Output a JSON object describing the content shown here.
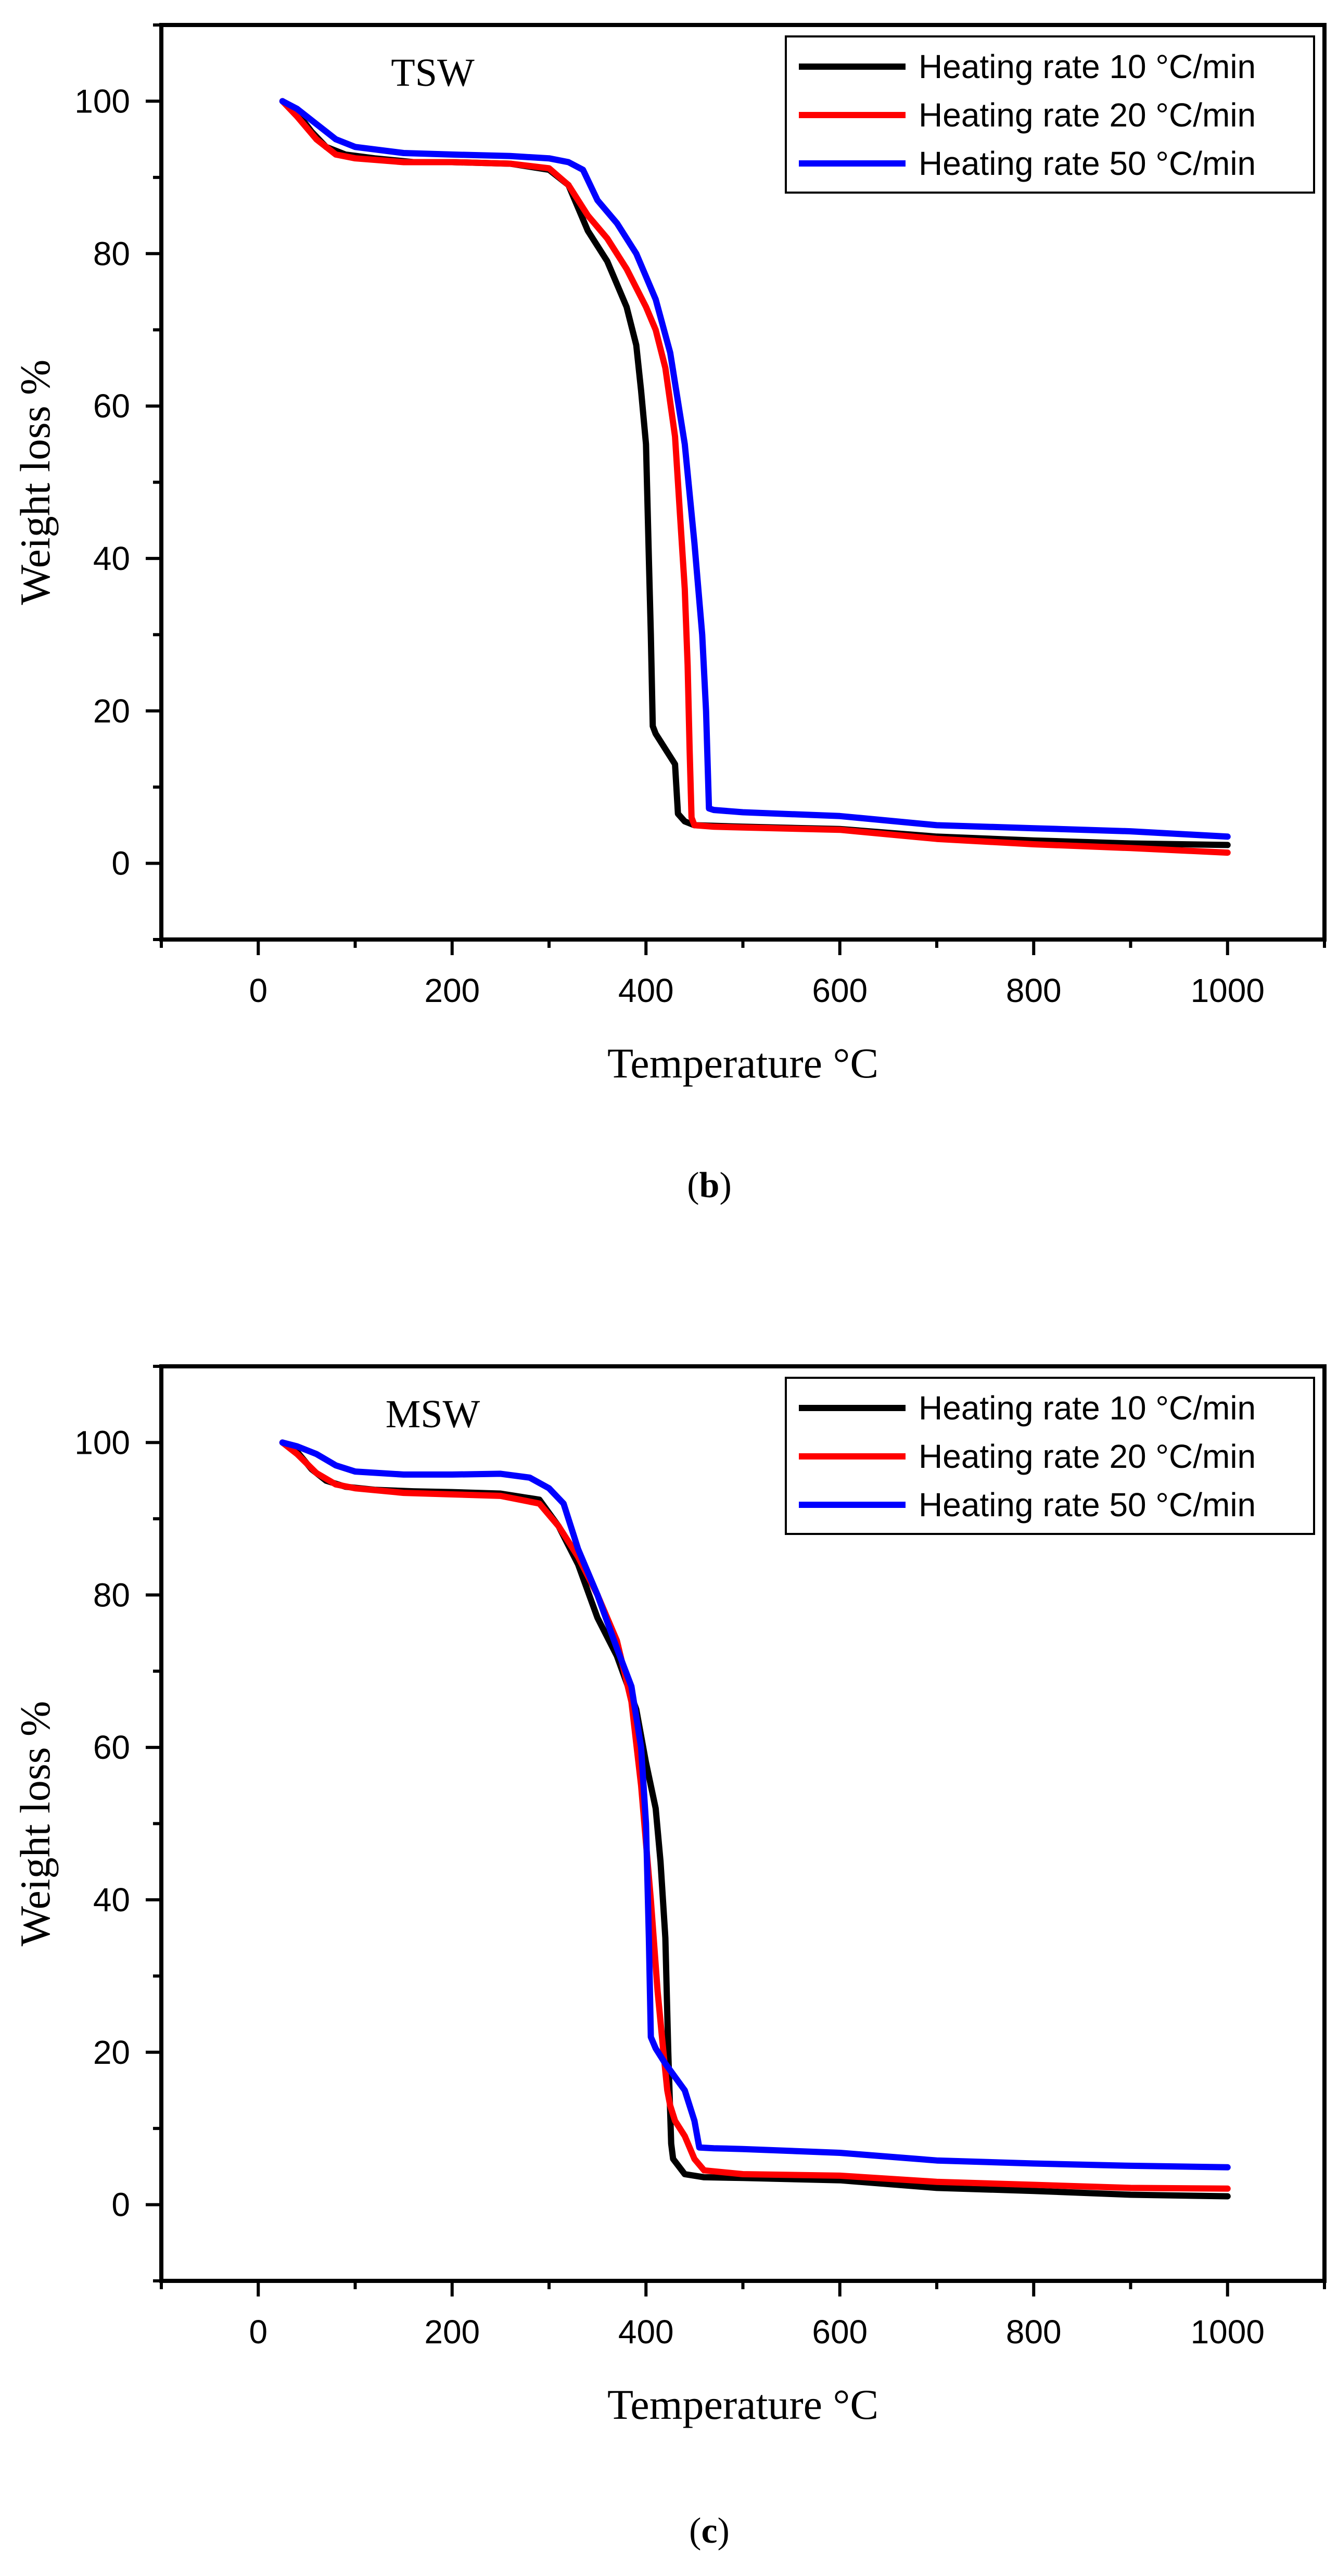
{
  "colors": {
    "series_10": "#000000",
    "series_20": "#ff0000",
    "series_50": "#0000ff",
    "axis": "#000000",
    "background": "#ffffff"
  },
  "chart_data": [
    {
      "type": "line",
      "panel_label": "b",
      "annotation": "TSW",
      "xlabel": "Temperature",
      "xlabel_unit": "°C",
      "ylabel": "Weight loss %",
      "xlim": [
        -100,
        1100
      ],
      "ylim": [
        -10,
        110
      ],
      "xticks": [
        0,
        200,
        400,
        600,
        800,
        1000
      ],
      "yticks": [
        0,
        20,
        40,
        60,
        80,
        100
      ],
      "grid": false,
      "legend_position": "top-right",
      "series": [
        {
          "name": "Heating rate 10 °C/min",
          "color_key": "series_10",
          "x": [
            25,
            40,
            55,
            70,
            90,
            120,
            160,
            200,
            260,
            300,
            320,
            330,
            340,
            360,
            380,
            390,
            395,
            400,
            403,
            405,
            407,
            410,
            420,
            430,
            433,
            440,
            450,
            500,
            600,
            700,
            800,
            900,
            1000
          ],
          "y": [
            100,
            98.5,
            96,
            94,
            93,
            92.5,
            92,
            92,
            91.8,
            91,
            89,
            86,
            83,
            79,
            73,
            68,
            62,
            55,
            40,
            30,
            18,
            17,
            15,
            13,
            6.5,
            5.5,
            5,
            4.8,
            4.5,
            3.5,
            3,
            2.6,
            2.4
          ]
        },
        {
          "name": "Heating rate 20 °C/min",
          "color_key": "series_20",
          "x": [
            25,
            40,
            60,
            80,
            100,
            150,
            200,
            260,
            300,
            320,
            340,
            360,
            380,
            400,
            410,
            420,
            430,
            435,
            440,
            443,
            445,
            447,
            450,
            470,
            500,
            600,
            700,
            800,
            900,
            1000
          ],
          "y": [
            100,
            98,
            95,
            93,
            92.5,
            92,
            92,
            91.8,
            91.2,
            89,
            85,
            82,
            78,
            73,
            70,
            65,
            56,
            46,
            36,
            26,
            15,
            6,
            5,
            4.8,
            4.7,
            4.4,
            3.2,
            2.5,
            2,
            1.4
          ]
        },
        {
          "name": "Heating rate 50 °C/min",
          "color_key": "series_50",
          "x": [
            25,
            40,
            60,
            80,
            100,
            150,
            200,
            260,
            300,
            320,
            335,
            350,
            370,
            390,
            410,
            425,
            440,
            450,
            458,
            462,
            465,
            470,
            500,
            600,
            700,
            800,
            900,
            1000
          ],
          "y": [
            100,
            99,
            97,
            95,
            94,
            93.2,
            93,
            92.8,
            92.5,
            92,
            91,
            87,
            84,
            80,
            74,
            67,
            55,
            42,
            30,
            20,
            7.2,
            7,
            6.7,
            6.2,
            5,
            4.6,
            4.2,
            3.5
          ]
        }
      ]
    },
    {
      "type": "line",
      "panel_label": "c",
      "annotation": "MSW",
      "xlabel": "Temperature",
      "xlabel_unit": "°C",
      "ylabel": "Weight loss %",
      "xlim": [
        -100,
        1100
      ],
      "ylim": [
        -10,
        110
      ],
      "xticks": [
        0,
        200,
        400,
        600,
        800,
        1000
      ],
      "yticks": [
        0,
        20,
        40,
        60,
        80,
        100
      ],
      "grid": false,
      "legend_position": "top-right",
      "series": [
        {
          "name": "Heating rate 10 °C/min",
          "color_key": "series_10",
          "x": [
            25,
            40,
            55,
            70,
            90,
            120,
            160,
            200,
            250,
            290,
            310,
            330,
            350,
            370,
            390,
            400,
            410,
            415,
            420,
            423,
            426,
            428,
            440,
            460,
            500,
            600,
            700,
            800,
            900,
            1000
          ],
          "y": [
            100,
            98.8,
            96.5,
            95,
            94.2,
            93.8,
            93.6,
            93.5,
            93.3,
            92.5,
            89,
            84,
            77,
            72,
            65,
            58,
            52,
            45,
            35,
            20,
            8,
            6,
            4,
            3.6,
            3.5,
            3.2,
            2.2,
            1.8,
            1.3,
            1.1
          ]
        },
        {
          "name": "Heating rate 20 °C/min",
          "color_key": "series_20",
          "x": [
            25,
            40,
            60,
            80,
            100,
            150,
            200,
            250,
            290,
            310,
            330,
            350,
            370,
            385,
            395,
            405,
            412,
            418,
            422,
            425,
            430,
            440,
            450,
            460,
            500,
            600,
            700,
            800,
            900,
            1000
          ],
          "y": [
            100,
            98.5,
            96,
            94.5,
            94,
            93.4,
            93.2,
            93,
            92,
            89,
            85,
            80,
            74,
            66,
            55,
            40,
            28,
            20,
            15,
            13,
            11,
            9,
            6,
            4.5,
            4,
            3.8,
            3,
            2.6,
            2.2,
            2.1
          ]
        },
        {
          "name": "Heating rate 50 °C/min",
          "color_key": "series_50",
          "x": [
            25,
            40,
            60,
            80,
            100,
            150,
            200,
            250,
            280,
            300,
            315,
            325,
            330,
            350,
            370,
            385,
            395,
            400,
            403,
            405,
            410,
            420,
            440,
            450,
            455,
            470,
            500,
            600,
            700,
            800,
            900,
            1000
          ],
          "y": [
            100,
            99.5,
            98.5,
            97,
            96.2,
            95.8,
            95.8,
            95.9,
            95.4,
            94,
            92,
            88,
            86,
            80,
            73,
            68,
            60,
            50,
            35,
            22,
            20.5,
            18.5,
            15,
            11,
            7.5,
            7.4,
            7.3,
            6.8,
            5.8,
            5.4,
            5.1,
            4.9
          ]
        }
      ]
    }
  ]
}
